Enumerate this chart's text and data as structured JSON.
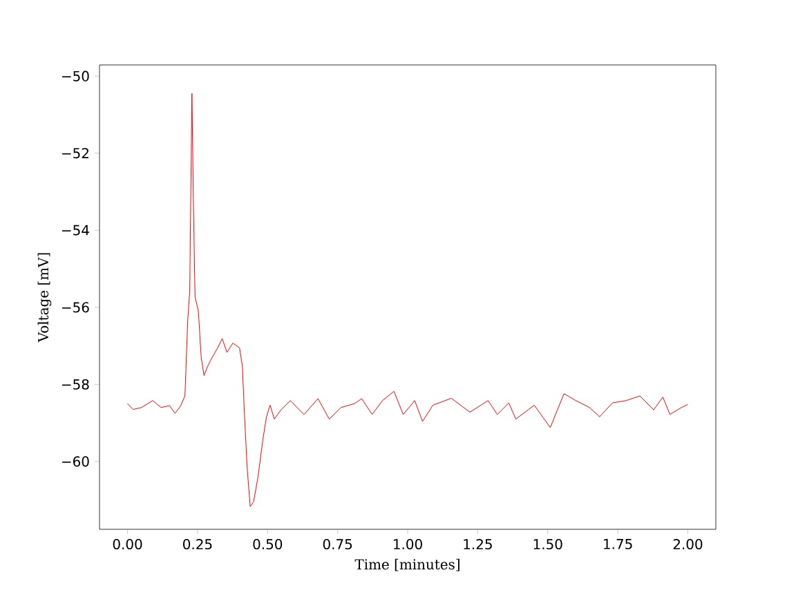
{
  "chart_data": {
    "type": "line",
    "xlabel": "Time [minutes]",
    "ylabel": "Voltage [mV]",
    "color": "#ff0000",
    "x": [
      0.0,
      0.02,
      0.05,
      0.09,
      0.12,
      0.15,
      0.17,
      0.19,
      0.205,
      0.215,
      0.222,
      0.23,
      0.235,
      0.241,
      0.253,
      0.263,
      0.273,
      0.286,
      0.302,
      0.322,
      0.338,
      0.355,
      0.376,
      0.4,
      0.41,
      0.417,
      0.427,
      0.438,
      0.45,
      0.466,
      0.483,
      0.496,
      0.509,
      0.524,
      0.548,
      0.581,
      0.63,
      0.68,
      0.72,
      0.762,
      0.81,
      0.836,
      0.873,
      0.91,
      0.951,
      0.984,
      1.025,
      1.053,
      1.09,
      1.156,
      1.222,
      1.287,
      1.32,
      1.361,
      1.386,
      1.452,
      1.509,
      1.558,
      1.6,
      1.649,
      1.685,
      1.731,
      1.78,
      1.829,
      1.878,
      1.911,
      1.936,
      1.977,
      2.0
    ],
    "values": [
      -58.5,
      -58.65,
      -58.6,
      -58.42,
      -58.6,
      -58.55,
      -58.75,
      -58.55,
      -58.3,
      -56.33,
      -55.6,
      -50.45,
      -53.2,
      -55.73,
      -56.1,
      -57.3,
      -57.77,
      -57.53,
      -57.3,
      -57.05,
      -56.81,
      -57.17,
      -56.93,
      -57.05,
      -57.53,
      -58.72,
      -60.15,
      -61.17,
      -61.05,
      -60.39,
      -59.44,
      -58.84,
      -58.54,
      -58.9,
      -58.66,
      -58.42,
      -58.78,
      -58.37,
      -58.9,
      -58.6,
      -58.5,
      -58.37,
      -58.78,
      -58.42,
      -58.18,
      -58.78,
      -58.42,
      -58.96,
      -58.54,
      -58.36,
      -58.72,
      -58.42,
      -58.78,
      -58.48,
      -58.9,
      -58.54,
      -59.12,
      -58.24,
      -58.42,
      -58.6,
      -58.84,
      -58.48,
      -58.42,
      -58.3,
      -58.66,
      -58.33,
      -58.78,
      -58.6,
      -58.52
    ],
    "xlim": [
      -0.1,
      2.1
    ],
    "ylim": [
      -61.76,
      -49.71
    ],
    "xticks": [
      {
        "value": 0,
        "label": "0.00"
      },
      {
        "value": 0.25,
        "label": "0.25"
      },
      {
        "value": 0.5,
        "label": "0.50"
      },
      {
        "value": 0.75,
        "label": "0.75"
      },
      {
        "value": 1,
        "label": "1.00"
      },
      {
        "value": 1.25,
        "label": "1.25"
      },
      {
        "value": 1.5,
        "label": "1.50"
      },
      {
        "value": 1.75,
        "label": "1.75"
      },
      {
        "value": 2,
        "label": "2.00"
      }
    ],
    "yticks": [
      {
        "value": -60,
        "label": "−60"
      },
      {
        "value": -58,
        "label": "−58"
      },
      {
        "value": -56,
        "label": "−56"
      },
      {
        "value": -54,
        "label": "−54"
      },
      {
        "value": -52,
        "label": "−52"
      },
      {
        "value": -50,
        "label": "−50"
      }
    ]
  }
}
